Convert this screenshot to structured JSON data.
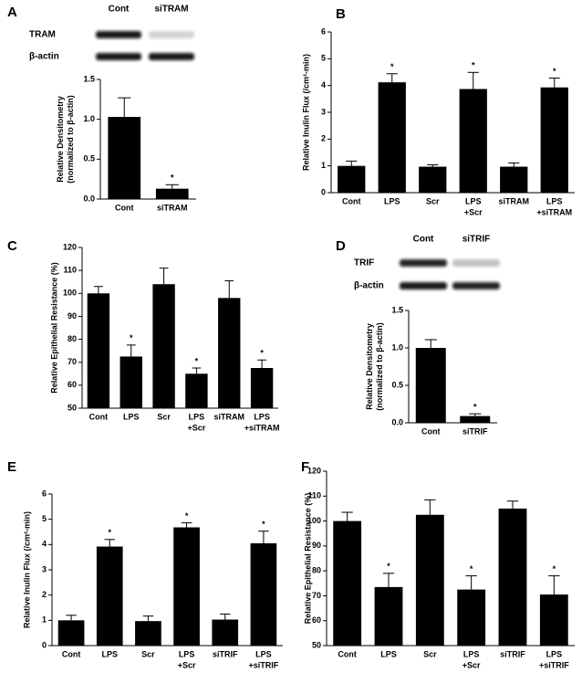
{
  "chart_data": [
    {
      "type": "bar",
      "panel": "A",
      "blot": {
        "columns": [
          "Cont",
          "siTRAM"
        ],
        "rows": [
          "TRAM",
          "β-actin"
        ]
      },
      "ylabel": [
        "Relative Densitometry",
        "(normalized to β-actin)"
      ],
      "categories": [
        [
          "Cont"
        ],
        [
          "siTRAM"
        ]
      ],
      "values": [
        1.03,
        0.13
      ],
      "errors": [
        0.24,
        0.05
      ],
      "significance": [
        null,
        "*"
      ],
      "color": "#000000",
      "ylim": [
        0,
        1.5
      ],
      "yticks": [
        {
          "value": 0,
          "label": "0.0"
        },
        {
          "value": 0.5,
          "label": "0.5"
        },
        {
          "value": 1,
          "label": "1.0"
        },
        {
          "value": 1.5,
          "label": "1.5"
        }
      ]
    },
    {
      "type": "bar",
      "panel": "B",
      "ylabel": [
        "Relative Inulin Flux (/cm²-min)"
      ],
      "categories": [
        [
          "Cont"
        ],
        [
          "LPS"
        ],
        [
          "Scr"
        ],
        [
          "LPS",
          "+Scr"
        ],
        [
          "siTRAM"
        ],
        [
          "LPS",
          "+siTRAM"
        ]
      ],
      "values": [
        1.0,
        4.12,
        0.97,
        3.87,
        0.97,
        3.93
      ],
      "errors": [
        0.18,
        0.32,
        0.07,
        0.62,
        0.14,
        0.35
      ],
      "significance": [
        null,
        "*",
        null,
        "*",
        null,
        "*"
      ],
      "color": "#000000",
      "ylim": [
        0,
        6
      ],
      "yticks": [
        0,
        1,
        2,
        3,
        4,
        5,
        6
      ]
    },
    {
      "type": "bar",
      "panel": "C",
      "ylabel": [
        "Relative Epithelial Resistance (%)"
      ],
      "categories": [
        [
          "Cont"
        ],
        [
          "LPS"
        ],
        [
          "Scr"
        ],
        [
          "LPS",
          "+Scr"
        ],
        [
          "siTRAM"
        ],
        [
          "LPS",
          "+siTRAM"
        ]
      ],
      "values": [
        100,
        72.5,
        104,
        65,
        98,
        67.5
      ],
      "errors": [
        3,
        5,
        7,
        2.5,
        7.5,
        3.5
      ],
      "significance": [
        null,
        "*",
        null,
        "*",
        null,
        "*"
      ],
      "color": "#000000",
      "ylim": [
        50,
        120
      ],
      "yticks": [
        50,
        60,
        70,
        80,
        90,
        100,
        110,
        120
      ]
    },
    {
      "type": "bar",
      "panel": "D",
      "blot": {
        "columns": [
          "Cont",
          "siTRIF"
        ],
        "rows": [
          "TRIF",
          "β-actin"
        ]
      },
      "ylabel": [
        "Relative Densitometry",
        "(normalized to β-actin)"
      ],
      "categories": [
        [
          "Cont"
        ],
        [
          "siTRIF"
        ]
      ],
      "values": [
        1.0,
        0.09
      ],
      "errors": [
        0.11,
        0.03
      ],
      "significance": [
        null,
        "*"
      ],
      "color": "#000000",
      "ylim": [
        0,
        1.5
      ],
      "yticks": [
        {
          "value": 0,
          "label": "0.0"
        },
        {
          "value": 0.5,
          "label": "0.5"
        },
        {
          "value": 1,
          "label": "1.0"
        },
        {
          "value": 1.5,
          "label": "1.5"
        }
      ]
    },
    {
      "type": "bar",
      "panel": "E",
      "ylabel": [
        "Relative Inulin Flux (/cm²-min)"
      ],
      "categories": [
        [
          "Cont"
        ],
        [
          "LPS"
        ],
        [
          "Scr"
        ],
        [
          "LPS",
          "+Scr"
        ],
        [
          "siTRIF"
        ],
        [
          "LPS",
          "+siTRIF"
        ]
      ],
      "values": [
        1.0,
        3.92,
        0.97,
        4.68,
        1.03,
        4.05
      ],
      "errors": [
        0.2,
        0.28,
        0.2,
        0.18,
        0.22,
        0.48
      ],
      "significance": [
        null,
        "*",
        null,
        "*",
        null,
        "*"
      ],
      "color": "#000000",
      "ylim": [
        0,
        6
      ],
      "yticks": [
        0,
        1,
        2,
        3,
        4,
        5,
        6
      ]
    },
    {
      "type": "bar",
      "panel": "F",
      "ylabel": [
        "Relative Epithelial Resistance (%)"
      ],
      "categories": [
        [
          "Cont"
        ],
        [
          "LPS"
        ],
        [
          "Scr"
        ],
        [
          "LPS",
          "+Scr"
        ],
        [
          "siTRIF"
        ],
        [
          "LPS",
          "+siTRIF"
        ]
      ],
      "values": [
        100,
        73.5,
        102.5,
        72.5,
        105,
        70.5
      ],
      "errors": [
        3.5,
        5.5,
        6,
        5.5,
        3,
        7.5
      ],
      "significance": [
        null,
        "*",
        null,
        "*",
        null,
        "*"
      ],
      "color": "#000000",
      "ylim": [
        50,
        120
      ],
      "yticks": [
        50,
        60,
        70,
        80,
        90,
        100,
        110,
        120
      ]
    }
  ]
}
